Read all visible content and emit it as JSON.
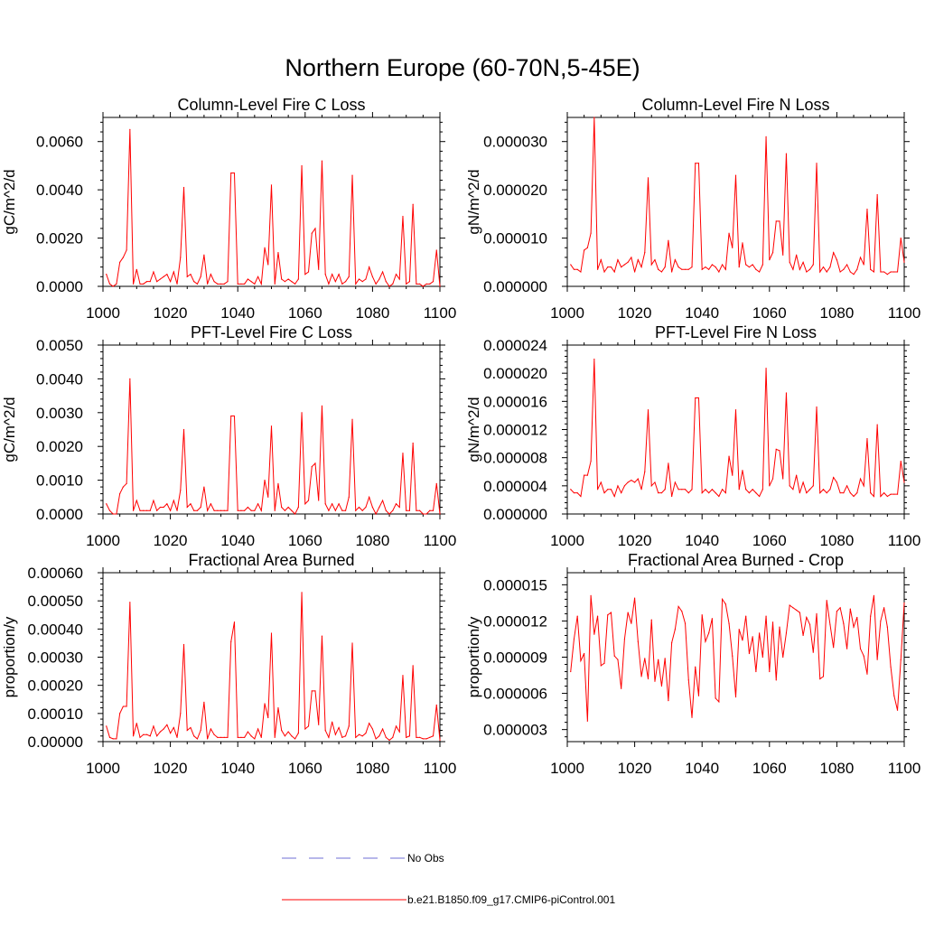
{
  "title": "Northern Europe (60-70N,5-45E)",
  "series_color": "#ff0000",
  "obs_color": "#6f6fd6",
  "legend": [
    {
      "label": "No Obs",
      "style": "dashed",
      "color": "#6f6fd6"
    },
    {
      "label": "b.e21.B1850.f09_g17.CMIP6-piControl.001",
      "style": "solid",
      "color": "#ff0000"
    }
  ],
  "chart_data": [
    {
      "type": "line",
      "title": "Column-Level Fire C Loss",
      "ylabel": "gC/m^2/d",
      "xlim": [
        1000,
        1100
      ],
      "ylim": [
        0,
        0.007
      ],
      "yticks": [
        0,
        0.002,
        0.004,
        0.006
      ],
      "ytick_labels": [
        "0.0000",
        "0.0020",
        "0.0040",
        "0.0060"
      ],
      "xticks": [
        1000,
        1020,
        1040,
        1060,
        1080,
        1100
      ],
      "x_start": 1001,
      "values": [
        0.0005,
        0.0001,
        0.0,
        0.0001,
        0.001,
        0.0012,
        0.0015,
        0.0065,
        0.0001,
        0.0007,
        0.0001,
        0.0001,
        0.0002,
        0.0002,
        0.0006,
        0.0002,
        0.0003,
        0.0004,
        0.0005,
        0.0002,
        0.0006,
        0.0001,
        0.0012,
        0.0041,
        0.0004,
        0.0005,
        0.0002,
        0.0001,
        0.0004,
        0.0013,
        0.0001,
        0.0005,
        0.0002,
        0.0001,
        0.0001,
        0.0001,
        0.0002,
        0.0047,
        0.0047,
        0.0001,
        0.0001,
        0.0001,
        0.0003,
        0.0002,
        0.0001,
        0.0004,
        0.0001,
        0.0016,
        0.0009,
        0.0042,
        0.0001,
        0.0014,
        0.0003,
        0.0002,
        0.0003,
        0.0002,
        0.0001,
        0.0003,
        0.005,
        0.0005,
        0.0006,
        0.0022,
        0.0024,
        0.0007,
        0.0052,
        0.0005,
        0.0001,
        0.0005,
        0.0002,
        0.0005,
        0.0001,
        0.0002,
        0.0004,
        0.0046,
        0.0001,
        0.0003,
        0.0002,
        0.0003,
        0.0008,
        0.0004,
        0.0001,
        0.0003,
        0.0006,
        0.0002,
        0.0,
        0.0001,
        0.0005,
        0.0003,
        0.0029,
        0.0001,
        0.0002,
        0.0034,
        0.0001,
        0.0001,
        0.0,
        0.0001,
        0.0001,
        0.0002,
        0.0015,
        0.0
      ]
    },
    {
      "type": "line",
      "title": "Column-Level Fire N Loss",
      "ylabel": "gN/m^2/d",
      "xlim": [
        1000,
        1100
      ],
      "ylim": [
        0,
        3.5e-05
      ],
      "yticks": [
        0,
        1e-05,
        2e-05,
        3e-05
      ],
      "ytick_labels": [
        "0.000000",
        "0.000010",
        "0.000020",
        "0.000030"
      ],
      "xticks": [
        1000,
        1020,
        1040,
        1060,
        1080,
        1100
      ],
      "x_start": 1001,
      "values": [
        4.5e-06,
        3.5e-06,
        3.5e-06,
        3e-06,
        7.5e-06,
        8e-06,
        1.1e-05,
        3.5e-05,
        3.5e-06,
        5.5e-06,
        3e-06,
        4e-06,
        4e-06,
        3e-06,
        5.5e-06,
        4e-06,
        4.5e-06,
        5e-06,
        6e-06,
        3e-06,
        5.5e-06,
        4e-06,
        7e-06,
        2.25e-05,
        4.5e-06,
        5.5e-06,
        3.5e-06,
        3e-06,
        4e-06,
        9.5e-06,
        3e-06,
        5.5e-06,
        4e-06,
        3.5e-06,
        3.5e-06,
        3.5e-06,
        4e-06,
        2.55e-05,
        2.55e-05,
        3.5e-06,
        4e-06,
        3.5e-06,
        4.5e-06,
        4e-06,
        3e-06,
        4.5e-06,
        3.5e-06,
        1.1e-05,
        8e-06,
        2.3e-05,
        4e-06,
        9e-06,
        4.5e-06,
        4e-06,
        4.5e-06,
        3.5e-06,
        3e-06,
        4.5e-06,
        3.1e-05,
        5.5e-06,
        7e-06,
        1.35e-05,
        1.35e-05,
        6.5e-06,
        2.75e-05,
        5e-06,
        3.5e-06,
        6.5e-06,
        3.5e-06,
        5e-06,
        3e-06,
        3.5e-06,
        4.5e-06,
        2.55e-05,
        3e-06,
        4e-06,
        3e-06,
        4e-06,
        7e-06,
        5.5e-06,
        3e-06,
        3.5e-06,
        4.5e-06,
        3e-06,
        2.5e-06,
        3.5e-06,
        6e-06,
        4.5e-06,
        1.6e-05,
        3.5e-06,
        3e-06,
        1.9e-05,
        3e-06,
        3e-06,
        2.5e-06,
        3e-06,
        3e-06,
        3e-06,
        1e-05,
        5e-06
      ]
    },
    {
      "type": "line",
      "title": "PFT-Level Fire C Loss",
      "ylabel": "gC/m^2/d",
      "xlim": [
        1000,
        1100
      ],
      "ylim": [
        0,
        0.005
      ],
      "yticks": [
        0,
        0.001,
        0.002,
        0.003,
        0.004,
        0.005
      ],
      "ytick_labels": [
        "0.0000",
        "0.0010",
        "0.0020",
        "0.0030",
        "0.0040",
        "0.0050"
      ],
      "xticks": [
        1000,
        1020,
        1040,
        1060,
        1080,
        1100
      ],
      "x_start": 1001,
      "values": [
        0.0003,
        0.0001,
        0.0,
        0.0,
        0.0006,
        0.0008,
        0.0009,
        0.004,
        0.0001,
        0.0004,
        0.0001,
        0.0001,
        0.0001,
        0.0001,
        0.0004,
        0.0001,
        0.0002,
        0.0002,
        0.0003,
        0.0001,
        0.0004,
        0.0001,
        0.0007,
        0.0025,
        0.0002,
        0.0003,
        0.0001,
        0.0001,
        0.0002,
        0.0008,
        0.0001,
        0.0003,
        0.0001,
        0.0001,
        0.0001,
        0.0001,
        0.0001,
        0.0029,
        0.0029,
        0.0001,
        0.0001,
        0.0001,
        0.0002,
        0.0001,
        0.0001,
        0.0003,
        0.0001,
        0.001,
        0.0005,
        0.0026,
        0.0001,
        0.0009,
        0.0002,
        0.0001,
        0.0002,
        0.0001,
        0.0,
        0.0002,
        0.003,
        0.0003,
        0.0004,
        0.0014,
        0.0015,
        0.0004,
        0.0032,
        0.0003,
        0.0001,
        0.0003,
        0.0001,
        0.0003,
        0.0001,
        0.0001,
        0.0005,
        0.0028,
        0.0001,
        0.0002,
        0.0001,
        0.0002,
        0.0005,
        0.0002,
        0.0,
        0.0002,
        0.0004,
        0.0001,
        0.0,
        0.0001,
        0.0003,
        0.0002,
        0.0018,
        0.0001,
        0.0001,
        0.0021,
        0.0001,
        0.0001,
        0.0,
        0.0,
        0.0001,
        0.0001,
        0.0009,
        0.0
      ]
    },
    {
      "type": "line",
      "title": "PFT-Level Fire N Loss",
      "ylabel": "gN/m^2/d",
      "xlim": [
        1000,
        1100
      ],
      "ylim": [
        0,
        2.4e-05
      ],
      "yticks": [
        0,
        4e-06,
        8e-06,
        1.2e-05,
        1.6e-05,
        2e-05,
        2.4e-05
      ],
      "ytick_labels": [
        "0.000000",
        "0.000004",
        "0.000008",
        "0.000012",
        "0.000016",
        "0.000020",
        "0.000024"
      ],
      "xticks": [
        1000,
        1020,
        1040,
        1060,
        1080,
        1100
      ],
      "x_start": 1001,
      "values": [
        3.5e-06,
        3e-06,
        3e-06,
        2.5e-06,
        5.5e-06,
        5.5e-06,
        7.5e-06,
        2.2e-05,
        3.5e-06,
        4.5e-06,
        3e-06,
        3.5e-06,
        3.5e-06,
        2.5e-06,
        4e-06,
        3e-06,
        4e-06,
        4.5e-06,
        4.8e-06,
        4.5e-06,
        5e-06,
        3.5e-06,
        6e-06,
        1.48e-05,
        4e-06,
        4.5e-06,
        3e-06,
        3e-06,
        3.5e-06,
        7.2e-06,
        2.5e-06,
        4.5e-06,
        3.5e-06,
        3.5e-06,
        3.5e-06,
        3e-06,
        3.5e-06,
        1.65e-05,
        1.65e-05,
        3e-06,
        3.5e-06,
        3e-06,
        3.5e-06,
        3e-06,
        2.5e-06,
        3.5e-06,
        3e-06,
        8.2e-06,
        5.5e-06,
        1.48e-05,
        3.5e-06,
        6.2e-06,
        3.5e-06,
        3e-06,
        3.5e-06,
        3e-06,
        2.5e-06,
        3.5e-06,
        2.07e-05,
        4e-06,
        5e-06,
        9.2e-06,
        9e-06,
        5e-06,
        1.72e-05,
        4e-06,
        3.5e-06,
        5.5e-06,
        3e-06,
        4.5e-06,
        3e-06,
        3.5e-06,
        4e-06,
        1.52e-05,
        3e-06,
        3.5e-06,
        3e-06,
        3.5e-06,
        5.2e-06,
        4.5e-06,
        3e-06,
        3e-06,
        4e-06,
        3e-06,
        2.5e-06,
        3e-06,
        5e-06,
        4e-06,
        1.07e-05,
        3e-06,
        2.5e-06,
        1.27e-05,
        2.5e-06,
        3e-06,
        2.5e-06,
        2.8e-06,
        2.8e-06,
        2.8e-06,
        7.5e-06,
        4.5e-06
      ]
    },
    {
      "type": "line",
      "title": "Fractional Area Burned",
      "ylabel": "proportion/y",
      "xlim": [
        1000,
        1100
      ],
      "ylim": [
        0,
        0.0006
      ],
      "yticks": [
        0,
        0.0001,
        0.0002,
        0.0003,
        0.0004,
        0.0005,
        0.0006
      ],
      "ytick_labels": [
        "0.00000",
        "0.00010",
        "0.00020",
        "0.00030",
        "0.00040",
        "0.00050",
        "0.00060"
      ],
      "xticks": [
        1000,
        1020,
        1040,
        1060,
        1080,
        1100
      ],
      "x_start": 1001,
      "values": [
        5.5e-05,
        1.5e-05,
        1e-05,
        1e-05,
        0.0001,
        0.000125,
        0.000125,
        0.000495,
        2e-05,
        6.5e-05,
        1.5e-05,
        2.5e-05,
        2.5e-05,
        2e-05,
        5.5e-05,
        2e-05,
        3.5e-05,
        4.5e-05,
        6e-05,
        3e-05,
        5e-05,
        1.5e-05,
        0.0001,
        0.000345,
        4e-05,
        5e-05,
        2e-05,
        1e-05,
        4e-05,
        0.00014,
        1e-05,
        4.5e-05,
        2.5e-05,
        1.5e-05,
        1.5e-05,
        1.5e-05,
        1.5e-05,
        0.000355,
        0.000425,
        1.5e-05,
        1.5e-05,
        1.5e-05,
        3.5e-05,
        2e-05,
        1e-05,
        4.5e-05,
        1.5e-05,
        0.000135,
        8.5e-05,
        0.000385,
        1.5e-05,
        0.00012,
        4e-05,
        2e-05,
        3.5e-05,
        2e-05,
        1e-05,
        3e-05,
        0.00053,
        4.5e-05,
        5.5e-05,
        0.00018,
        0.00018,
        6e-05,
        0.000375,
        4e-05,
        1.5e-05,
        7e-05,
        2.5e-05,
        5e-05,
        1.5e-05,
        2e-05,
        5.5e-05,
        0.00035,
        1.5e-05,
        2.5e-05,
        2e-05,
        3e-05,
        6.5e-05,
        4.5e-05,
        1e-05,
        2e-05,
        4.5e-05,
        1.5e-05,
        5e-06,
        1.5e-05,
        5.5e-05,
        3.5e-05,
        0.000235,
        1.5e-05,
        2e-05,
        0.00027,
        1.5e-05,
        1.5e-05,
        1e-05,
        1e-05,
        1.5e-05,
        2e-05,
        0.00013,
        5e-06
      ]
    },
    {
      "type": "line",
      "title": "Fractional Area Burned - Crop",
      "ylabel": "proportion/y",
      "xlim": [
        1000,
        1100
      ],
      "ylim": [
        2e-06,
        1.6e-05
      ],
      "yticks": [
        3e-06,
        6e-06,
        9e-06,
        1.2e-05,
        1.5e-05
      ],
      "ytick_labels": [
        "0.000003",
        "0.000006",
        "0.000009",
        "0.000012",
        "0.000015"
      ],
      "xticks": [
        1000,
        1020,
        1040,
        1060,
        1080,
        1100
      ],
      "x_start": 1001,
      "values": [
        7.8e-06,
        1.05e-05,
        1.24e-05,
        8.7e-06,
        9.3e-06,
        3.7e-06,
        1.41e-05,
        1.09e-05,
        1.24e-05,
        8.3e-06,
        8.5e-06,
        1.25e-05,
        1.27e-05,
        9.1e-06,
        8.8e-06,
        6.4e-06,
        1.05e-05,
        1.27e-05,
        1.18e-05,
        1.39e-05,
        1.03e-05,
        7.4e-06,
        8.9e-06,
        7.2e-06,
        1.21e-05,
        7e-06,
        8.8e-06,
        6.6e-06,
        8.9e-06,
        5.4e-06,
        1.02e-05,
        1.13e-05,
        1.32e-05,
        1.28e-05,
        1.18e-05,
        7.1e-06,
        4e-06,
        8.2e-06,
        5.8e-06,
        1.25e-05,
        1.03e-05,
        1.1e-05,
        1.22e-05,
        5.6e-06,
        5.3e-06,
        1.38e-05,
        1.34e-05,
        1.18e-05,
        9.1e-06,
        5.7e-06,
        1.13e-05,
        1.04e-05,
        1.24e-05,
        9.3e-06,
        1.07e-05,
        7.8e-06,
        1.1e-05,
        9e-06,
        1.24e-05,
        7.8e-06,
        1.19e-05,
        7.1e-06,
        1.15e-05,
        9e-06,
        1.1e-05,
        1.33e-05,
        1.31e-05,
        1.29e-05,
        1.27e-05,
        1.08e-05,
        1.23e-05,
        1.17e-05,
        9.4e-06,
        1.26e-05,
        7.2e-06,
        7.4e-06,
        1.37e-05,
        1.17e-05,
        9.8e-06,
        1.28e-05,
        1.31e-05,
        1.18e-05,
        9.7e-06,
        1.3e-05,
        1.15e-05,
        1.23e-05,
        9.7e-06,
        9.1e-06,
        7.6e-06,
        1.24e-05,
        1.41e-05,
        8.8e-06,
        1.2e-05,
        1.31e-05,
        1.15e-05,
        8.2e-06,
        5.8e-06,
        4.6e-06,
        8.8e-06,
        1.35e-05
      ]
    }
  ]
}
